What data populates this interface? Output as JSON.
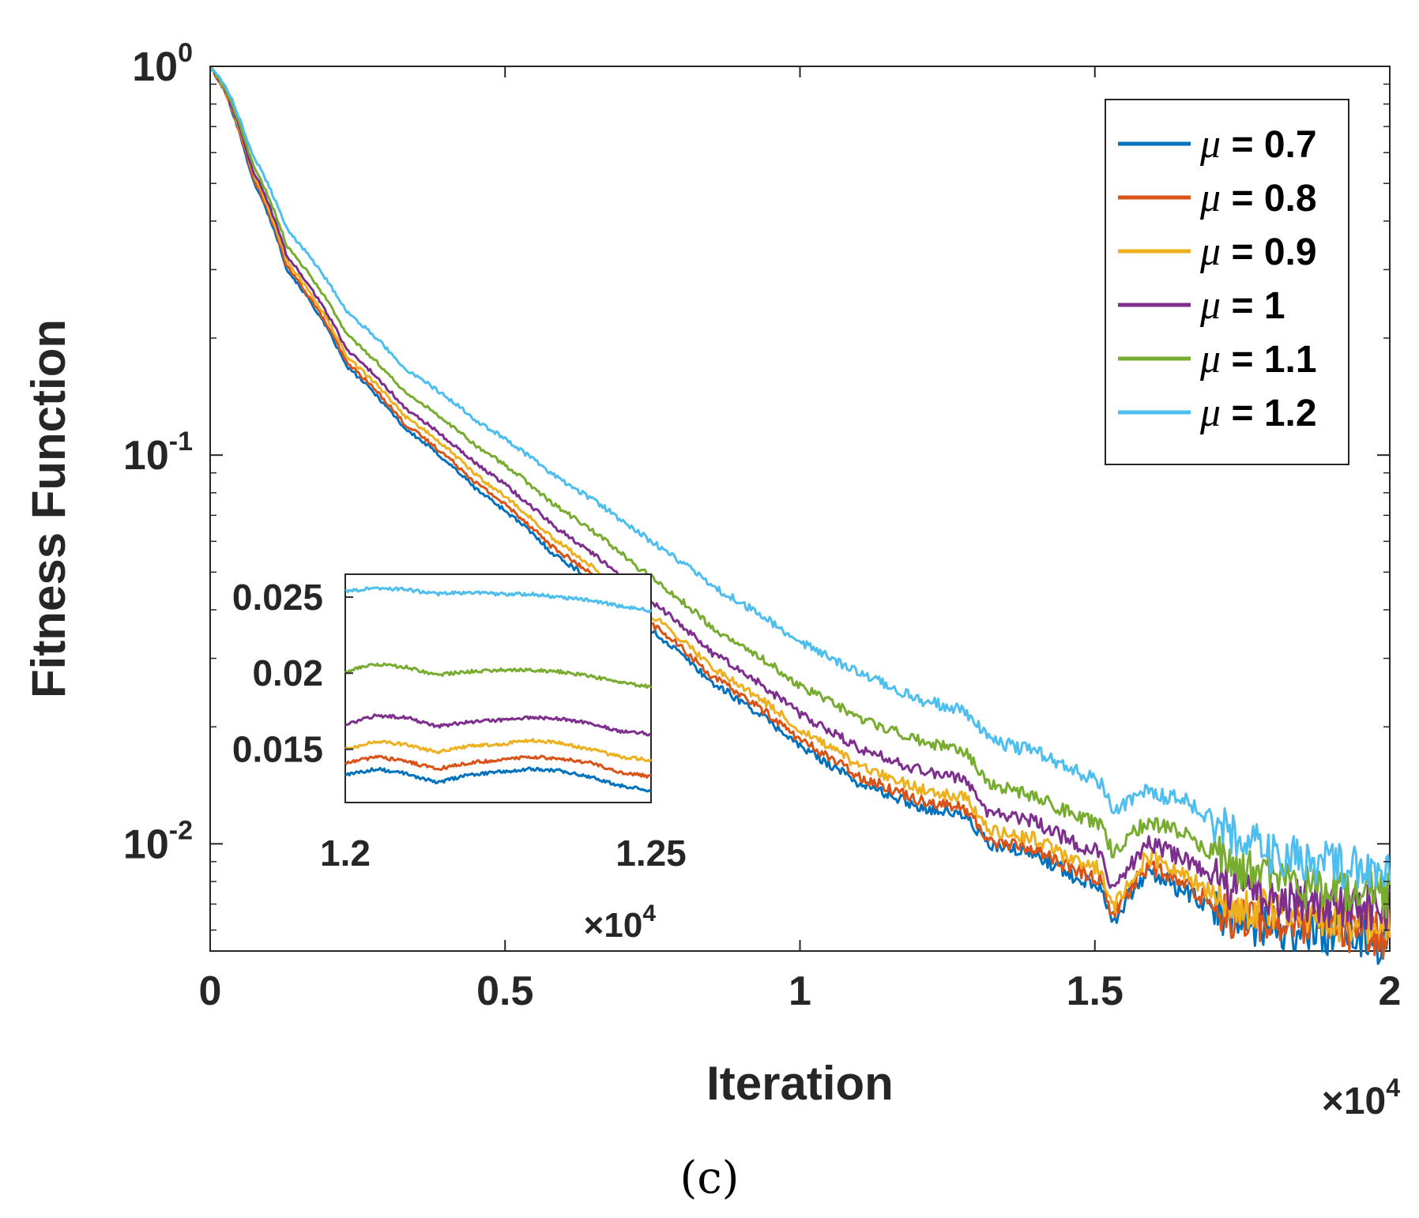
{
  "caption": "(c)",
  "colors": {
    "axis": "#262626",
    "series": [
      "#0072bd",
      "#d95319",
      "#edb120",
      "#7e2f8e",
      "#77ac30",
      "#4dbeee"
    ]
  },
  "chart_data": [
    {
      "type": "line",
      "xlabel": "Iteration",
      "ylabel": "Fitness Function",
      "yscale": "log",
      "xlim": [
        0,
        20000
      ],
      "ylim": [
        0.0053,
        1
      ],
      "x_multiplier": "×10",
      "x_multiplier_exp": "4",
      "x_ticks": [
        {
          "value": 0,
          "label": "0"
        },
        {
          "value": 5000,
          "label": "0.5"
        },
        {
          "value": 10000,
          "label": "1"
        },
        {
          "value": 15000,
          "label": "1.5"
        },
        {
          "value": 20000,
          "label": "2"
        }
      ],
      "y_ticks": [
        {
          "value": 1,
          "base": "10",
          "exp": "0"
        },
        {
          "value": 0.1,
          "base": "10",
          "exp": "-1"
        },
        {
          "value": 0.01,
          "base": "10",
          "exp": "-2"
        }
      ],
      "legend_position": "top-right",
      "legend_symbol": "μ",
      "series": [
        {
          "name": "μ = 0.7",
          "legend_value": " = 0.7",
          "x": [
            0,
            250,
            700,
            1300,
            2300,
            3300,
            4500,
            5800,
            7200,
            8500,
            10000,
            11000,
            12000,
            12800,
            13200,
            14000,
            14600,
            15100,
            15300,
            15900,
            16600,
            17300,
            18000,
            18600,
            19300,
            20000
          ],
          "y": [
            1.0,
            0.86,
            0.52,
            0.3,
            0.17,
            0.117,
            0.082,
            0.056,
            0.038,
            0.026,
            0.0178,
            0.0143,
            0.0125,
            0.0118,
            0.0099,
            0.0094,
            0.0083,
            0.0078,
            0.0063,
            0.0085,
            0.0074,
            0.0063,
            0.0061,
            0.0059,
            0.0058,
            0.0056
          ]
        },
        {
          "name": "μ = 0.8",
          "legend_value": " = 0.8",
          "x": [
            0,
            250,
            700,
            1300,
            2300,
            3300,
            4500,
            5800,
            7200,
            8500,
            10000,
            11000,
            12000,
            12800,
            13200,
            14000,
            14600,
            15100,
            15300,
            15900,
            16600,
            17300,
            18000,
            18600,
            19300,
            20000
          ],
          "y": [
            1.0,
            0.86,
            0.53,
            0.305,
            0.174,
            0.12,
            0.085,
            0.058,
            0.0395,
            0.027,
            0.0185,
            0.0149,
            0.013,
            0.0123,
            0.0102,
            0.0097,
            0.0086,
            0.0081,
            0.0065,
            0.0088,
            0.0077,
            0.0065,
            0.0063,
            0.0061,
            0.006,
            0.0058
          ]
        },
        {
          "name": "μ = 0.9",
          "legend_value": " = 0.9",
          "x": [
            0,
            250,
            700,
            1300,
            2300,
            3300,
            4500,
            5800,
            7200,
            8500,
            10000,
            11000,
            12000,
            12800,
            13200,
            14000,
            14600,
            15100,
            15300,
            15900,
            16600,
            17300,
            18000,
            18600,
            19300,
            20000
          ],
          "y": [
            1.0,
            0.87,
            0.54,
            0.315,
            0.18,
            0.126,
            0.089,
            0.061,
            0.0415,
            0.0285,
            0.0196,
            0.0158,
            0.0139,
            0.0132,
            0.0108,
            0.0103,
            0.0091,
            0.0086,
            0.0068,
            0.0093,
            0.0081,
            0.0069,
            0.0067,
            0.0065,
            0.0064,
            0.0062
          ]
        },
        {
          "name": "μ = 1",
          "legend_value": " = 1",
          "x": [
            0,
            250,
            700,
            1300,
            2300,
            3300,
            4500,
            5800,
            7200,
            8500,
            10000,
            11000,
            12000,
            12800,
            13200,
            14000,
            14600,
            15100,
            15300,
            15900,
            16600,
            17300,
            18000,
            18600,
            19300,
            20000
          ],
          "y": [
            1.0,
            0.87,
            0.55,
            0.325,
            0.188,
            0.132,
            0.095,
            0.066,
            0.045,
            0.031,
            0.0215,
            0.0176,
            0.0155,
            0.0147,
            0.012,
            0.0114,
            0.0101,
            0.0095,
            0.0074,
            0.0101,
            0.009,
            0.0076,
            0.0073,
            0.0071,
            0.0069,
            0.0067
          ]
        },
        {
          "name": "μ = 1.1",
          "legend_value": " = 1.1",
          "x": [
            0,
            250,
            700,
            1300,
            2300,
            3300,
            4500,
            5800,
            7200,
            8500,
            10000,
            11000,
            12000,
            12800,
            13200,
            14000,
            14600,
            15100,
            15300,
            15900,
            16600,
            17300,
            18000,
            18600,
            19300,
            20000
          ],
          "y": [
            1.0,
            0.88,
            0.57,
            0.345,
            0.205,
            0.145,
            0.106,
            0.075,
            0.052,
            0.036,
            0.0255,
            0.021,
            0.0185,
            0.0172,
            0.0142,
            0.0133,
            0.0119,
            0.0112,
            0.0095,
            0.0115,
            0.0104,
            0.0088,
            0.0081,
            0.0077,
            0.0076,
            0.0074
          ]
        },
        {
          "name": "μ = 1.2",
          "legend_value": " = 1.2",
          "x": [
            0,
            250,
            700,
            1300,
            2300,
            3300,
            4500,
            5800,
            7200,
            8500,
            10000,
            11000,
            12000,
            12800,
            13200,
            14000,
            14600,
            15100,
            15300,
            15900,
            16600,
            17300,
            18000,
            18600,
            19300,
            20000
          ],
          "y": [
            1.0,
            0.9,
            0.6,
            0.38,
            0.235,
            0.167,
            0.123,
            0.089,
            0.064,
            0.046,
            0.033,
            0.0275,
            0.0235,
            0.022,
            0.0185,
            0.0172,
            0.0155,
            0.0143,
            0.0122,
            0.0137,
            0.0127,
            0.0107,
            0.0095,
            0.009,
            0.0087,
            0.0081
          ]
        }
      ]
    },
    {
      "type": "line",
      "role": "inset",
      "xlim": [
        12000,
        12500
      ],
      "ylim": [
        0.0115,
        0.0265
      ],
      "x_multiplier": "×10",
      "x_multiplier_exp": "4",
      "x_ticks": [
        {
          "value": 12000,
          "label": "1.2"
        },
        {
          "value": 12500,
          "label": "1.25"
        }
      ],
      "y_ticks": [
        {
          "value": 0.025,
          "label": "0.025"
        },
        {
          "value": 0.02,
          "label": "0.02"
        },
        {
          "value": 0.015,
          "label": "0.015"
        }
      ],
      "series": [
        {
          "name": "μ = 0.7",
          "x": [
            12000,
            12050,
            12100,
            12150,
            12200,
            12250,
            12300,
            12350,
            12400,
            12450,
            12500
          ],
          "y": [
            0.0133,
            0.0137,
            0.0134,
            0.0128,
            0.0133,
            0.0135,
            0.0137,
            0.0136,
            0.0132,
            0.0126,
            0.0123
          ]
        },
        {
          "name": "μ = 0.8",
          "x": [
            12000,
            12050,
            12100,
            12150,
            12200,
            12250,
            12300,
            12350,
            12400,
            12450,
            12500
          ],
          "y": [
            0.0141,
            0.0145,
            0.0142,
            0.0137,
            0.0141,
            0.0143,
            0.0145,
            0.0144,
            0.0141,
            0.0135,
            0.0132
          ]
        },
        {
          "name": "μ = 0.9",
          "x": [
            12000,
            12050,
            12100,
            12150,
            12200,
            12250,
            12300,
            12350,
            12400,
            12450,
            12500
          ],
          "y": [
            0.015,
            0.0155,
            0.0153,
            0.0148,
            0.0152,
            0.0153,
            0.0156,
            0.0154,
            0.015,
            0.0145,
            0.0143
          ]
        },
        {
          "name": "μ = 1",
          "x": [
            12000,
            12050,
            12100,
            12150,
            12200,
            12250,
            12300,
            12350,
            12400,
            12450,
            12500
          ],
          "y": [
            0.0166,
            0.0172,
            0.0171,
            0.0165,
            0.0168,
            0.0169,
            0.0171,
            0.017,
            0.0167,
            0.0162,
            0.016
          ]
        },
        {
          "name": "μ = 1.1",
          "x": [
            12000,
            12050,
            12100,
            12150,
            12200,
            12250,
            12300,
            12350,
            12400,
            12450,
            12500
          ],
          "y": [
            0.0201,
            0.0206,
            0.0204,
            0.0199,
            0.0201,
            0.0202,
            0.0202,
            0.0201,
            0.0198,
            0.0194,
            0.0191
          ]
        },
        {
          "name": "μ = 1.2",
          "x": [
            12000,
            12050,
            12100,
            12150,
            12200,
            12250,
            12300,
            12350,
            12400,
            12450,
            12500
          ],
          "y": [
            0.0254,
            0.0256,
            0.0255,
            0.0252,
            0.0253,
            0.0252,
            0.0252,
            0.025,
            0.0248,
            0.0244,
            0.0241
          ]
        }
      ]
    }
  ]
}
